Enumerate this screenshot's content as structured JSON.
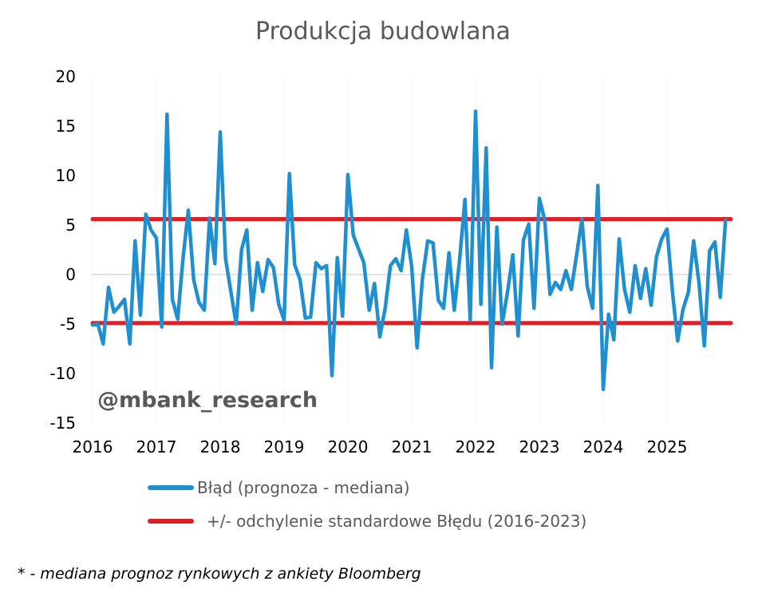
{
  "chart_data": {
    "type": "line",
    "title": "Produkcja budowlana",
    "xlabel": "",
    "ylabel": "",
    "ylim": [
      -15,
      20
    ],
    "xlim": [
      "2016-01",
      "2026-01"
    ],
    "yticks": [
      "20",
      "15",
      "10",
      "5",
      "0",
      "-5",
      "-10",
      "-15"
    ],
    "xticks": [
      "2016",
      "2017",
      "2018",
      "2019",
      "2020",
      "2021",
      "2022",
      "2023",
      "2024",
      "2025"
    ],
    "grid": false,
    "legend_position": "bottom",
    "watermark": "@mbank_research",
    "series": [
      {
        "name": "Błąd (prognoza - mediana)",
        "color": "#1F8FD0",
        "x": [
          "2016-01",
          "2016-02",
          "2016-03",
          "2016-04",
          "2016-05",
          "2016-06",
          "2016-07",
          "2016-08",
          "2016-09",
          "2016-10",
          "2016-11",
          "2016-12",
          "2017-01",
          "2017-02",
          "2017-03",
          "2017-04",
          "2017-05",
          "2017-06",
          "2017-07",
          "2017-08",
          "2017-09",
          "2017-10",
          "2017-11",
          "2017-12",
          "2018-01",
          "2018-02",
          "2018-03",
          "2018-04",
          "2018-05",
          "2018-06",
          "2018-07",
          "2018-08",
          "2018-09",
          "2018-10",
          "2018-11",
          "2018-12",
          "2019-01",
          "2019-02",
          "2019-03",
          "2019-04",
          "2019-05",
          "2019-06",
          "2019-07",
          "2019-08",
          "2019-09",
          "2019-10",
          "2019-11",
          "2019-12",
          "2020-01",
          "2020-02",
          "2020-03",
          "2020-04",
          "2020-05",
          "2020-06",
          "2020-07",
          "2020-08",
          "2020-09",
          "2020-10",
          "2020-11",
          "2020-12",
          "2021-01",
          "2021-02",
          "2021-03",
          "2021-04",
          "2021-05",
          "2021-06",
          "2021-07",
          "2021-08",
          "2021-09",
          "2021-10",
          "2021-11",
          "2021-12",
          "2022-01",
          "2022-02",
          "2022-03",
          "2022-04",
          "2022-05",
          "2022-06",
          "2022-07",
          "2022-08",
          "2022-09",
          "2022-10",
          "2022-11",
          "2022-12",
          "2023-01",
          "2023-02",
          "2023-03",
          "2023-04",
          "2023-05",
          "2023-06",
          "2023-07",
          "2023-08",
          "2023-09",
          "2023-10",
          "2023-11",
          "2023-12",
          "2024-01",
          "2024-02",
          "2024-03",
          "2024-04",
          "2024-05",
          "2024-06",
          "2024-07",
          "2024-08",
          "2024-09",
          "2024-10",
          "2024-11",
          "2024-12",
          "2025-01",
          "2025-02",
          "2025-03",
          "2025-04",
          "2025-05",
          "2025-06",
          "2025-07",
          "2025-08",
          "2025-09",
          "2025-10",
          "2025-11",
          "2025-12"
        ],
        "values": [
          -5.1,
          -5.0,
          -7.0,
          -1.3,
          -3.8,
          -3.2,
          -2.5,
          -7.0,
          3.4,
          -4.1,
          6.1,
          4.5,
          3.7,
          -5.3,
          16.2,
          -2.5,
          -4.5,
          1.6,
          6.5,
          -0.5,
          -2.8,
          -3.6,
          5.7,
          1.1,
          14.4,
          1.6,
          -1.7,
          -5.0,
          2.5,
          4.5,
          -3.6,
          1.2,
          -1.7,
          1.5,
          0.7,
          -3.0,
          -4.6,
          10.2,
          1.0,
          -0.5,
          -4.4,
          -4.3,
          1.2,
          0.6,
          0.9,
          -10.2,
          1.7,
          -4.2,
          10.1,
          4.0,
          2.6,
          1.2,
          -3.6,
          -0.9,
          -6.3,
          -3.4,
          0.9,
          1.6,
          0.4,
          4.5,
          0.8,
          -7.4,
          -0.5,
          3.4,
          3.2,
          -2.6,
          -3.4,
          2.2,
          -3.6,
          1.5,
          7.6,
          -4.6,
          16.5,
          -3.0,
          12.8,
          -9.4,
          4.8,
          -5.0,
          -1.8,
          2.0,
          -6.2,
          3.5,
          5.1,
          -3.4,
          7.7,
          5.5,
          -2.0,
          -0.8,
          -1.5,
          0.4,
          -1.5,
          2.0,
          5.6,
          -1.2,
          -3.4,
          9.0,
          -11.6,
          -4.0,
          -6.6,
          3.6,
          -1.5,
          -3.8,
          0.9,
          -2.4,
          0.6,
          -3.1,
          1.8,
          3.6,
          4.6,
          -1.7,
          -6.7,
          -3.5,
          -1.8,
          3.4,
          -0.8,
          -7.2,
          2.4,
          3.3,
          -2.3,
          5.5
        ]
      },
      {
        "name": "+/- odchylenie standardowe Błędu (2016-2023)",
        "color": "#DD1F26",
        "upper": 5.6,
        "lower": -4.9
      }
    ],
    "footnote": "* - mediana prognoz rynkowych z ankiety Bloomberg"
  }
}
